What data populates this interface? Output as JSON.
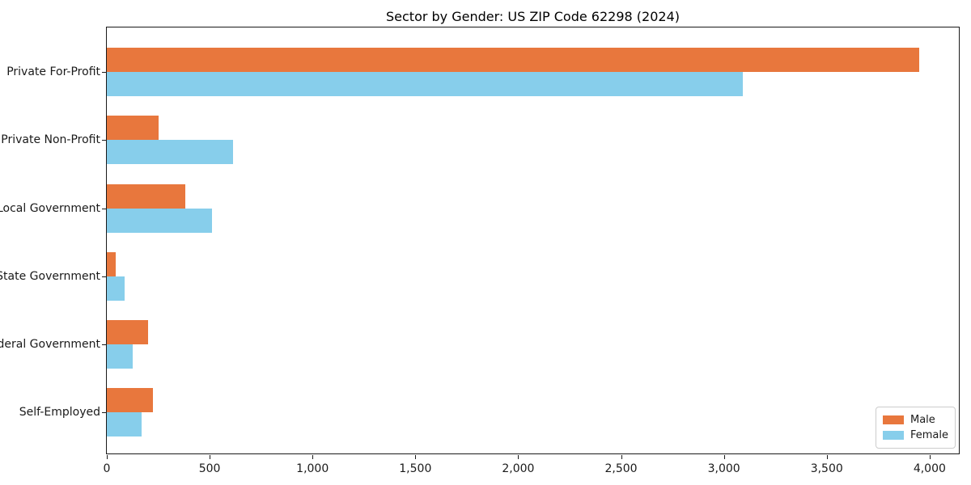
{
  "chart_data": {
    "type": "bar",
    "orientation": "horizontal",
    "title": "Sector by Gender: US ZIP Code 62298 (2024)",
    "categories": [
      "Private For-Profit",
      "Private Non-Profit",
      "Local Government",
      "State Government",
      "Federal Government",
      "Self-Employed"
    ],
    "series": [
      {
        "name": "Male",
        "color": "#e8773d",
        "values": [
          3950,
          250,
          380,
          45,
          200,
          225
        ]
      },
      {
        "name": "Female",
        "color": "#87ceeb",
        "values": [
          3090,
          615,
          510,
          85,
          125,
          170
        ]
      }
    ],
    "xlabel": "",
    "ylabel": "",
    "xlim": [
      0,
      4150
    ],
    "xticks": [
      0,
      500,
      1000,
      1500,
      2000,
      2500,
      3000,
      3500,
      4000
    ],
    "xtick_labels": [
      "0",
      "500",
      "1,000",
      "1,500",
      "2,000",
      "2,500",
      "3,000",
      "3,500",
      "4,000"
    ],
    "grid": false,
    "legend": {
      "position": "lower right"
    }
  }
}
